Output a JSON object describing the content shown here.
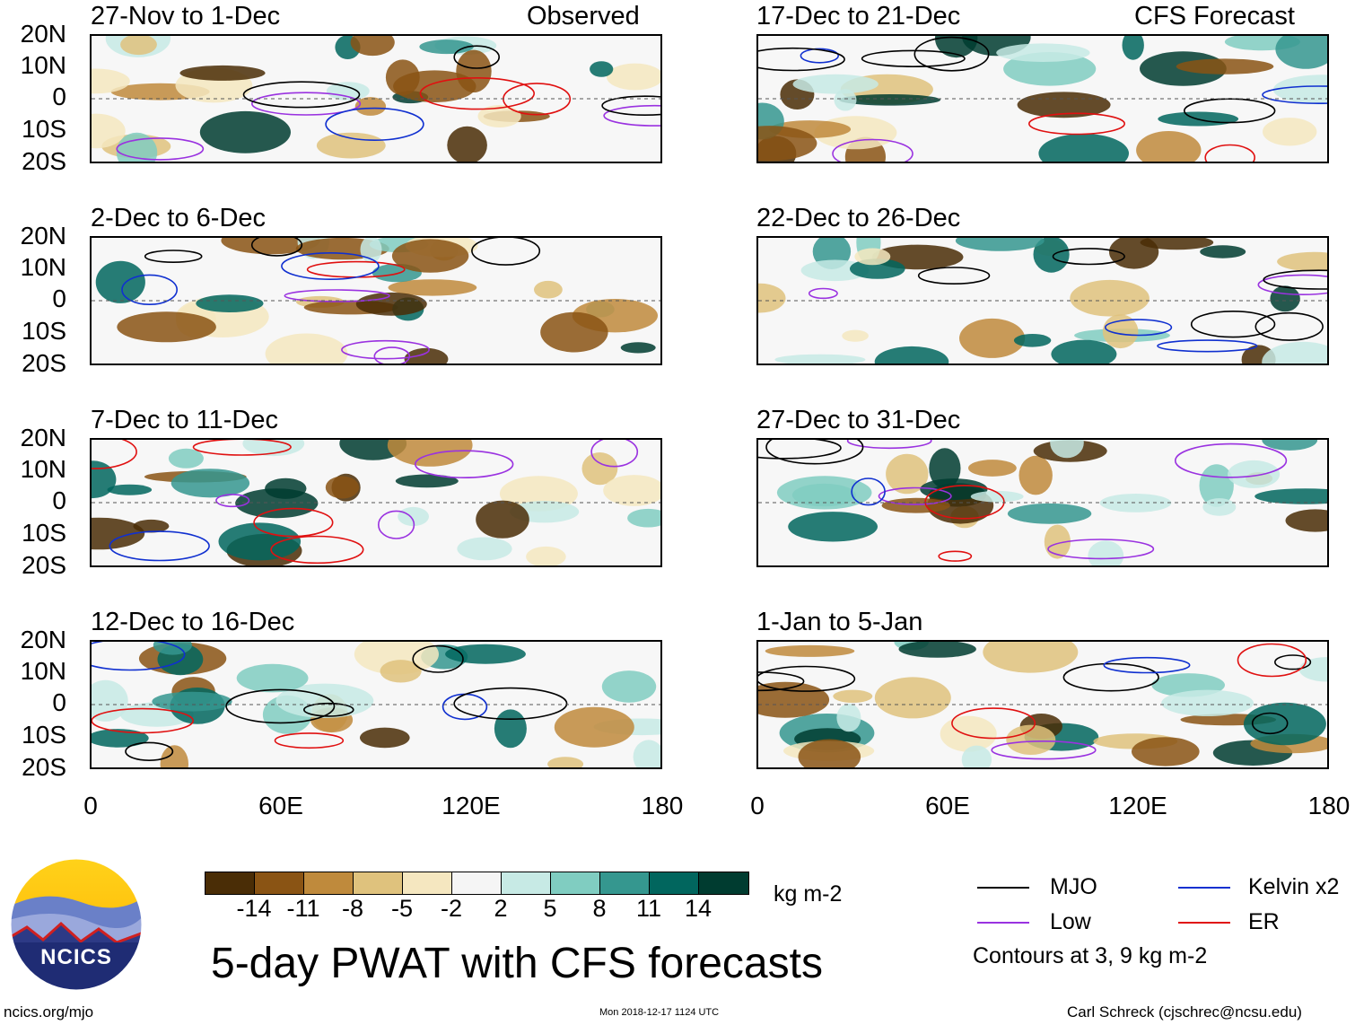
{
  "header": {
    "observed_label": "Observed",
    "forecast_label": "CFS Forecast"
  },
  "panels_left": [
    {
      "title": "27-Nov to 1-Dec"
    },
    {
      "title": "2-Dec to 6-Dec"
    },
    {
      "title": "7-Dec to 11-Dec"
    },
    {
      "title": "12-Dec to 16-Dec"
    }
  ],
  "panels_right": [
    {
      "title": "17-Dec to 21-Dec"
    },
    {
      "title": "22-Dec to 26-Dec"
    },
    {
      "title": "27-Dec to 31-Dec"
    },
    {
      "title": "1-Jan to 5-Jan"
    }
  ],
  "lat_labels": [
    "20N",
    "10N",
    "0",
    "10S",
    "20S"
  ],
  "lon_labels": [
    "0",
    "60E",
    "120E",
    "180"
  ],
  "colorbar": {
    "colors": [
      "#4a2d06",
      "#8a5414",
      "#bf8a3c",
      "#dfc27d",
      "#f5e7c0",
      "#f5f5f5",
      "#c7eae5",
      "#80cdc1",
      "#35978f",
      "#01665e",
      "#003c30"
    ],
    "ticks": [
      "-14",
      "-11",
      "-8",
      "-5",
      "-2",
      "2",
      "5",
      "8",
      "11",
      "14"
    ],
    "units": "kg m-2"
  },
  "legend": {
    "mjo": "MJO",
    "kelvin": "Kelvin x2",
    "low": "Low",
    "er": "ER",
    "mjo_color": "#000000",
    "kelvin_color": "#1030d0",
    "low_color": "#9a32e0",
    "er_color": "#e01010",
    "contours_note": "Contours at 3, 9 kg m-2"
  },
  "logo": {
    "text": "NCICS"
  },
  "main_title": "5-day PWAT with CFS forecasts",
  "footer": {
    "url": "ncics.org/mjo",
    "timestamp": "Mon 2018-12-17 1124 UTC",
    "credit": "Carl Schreck (cjschrec@ncsu.edu)"
  }
}
